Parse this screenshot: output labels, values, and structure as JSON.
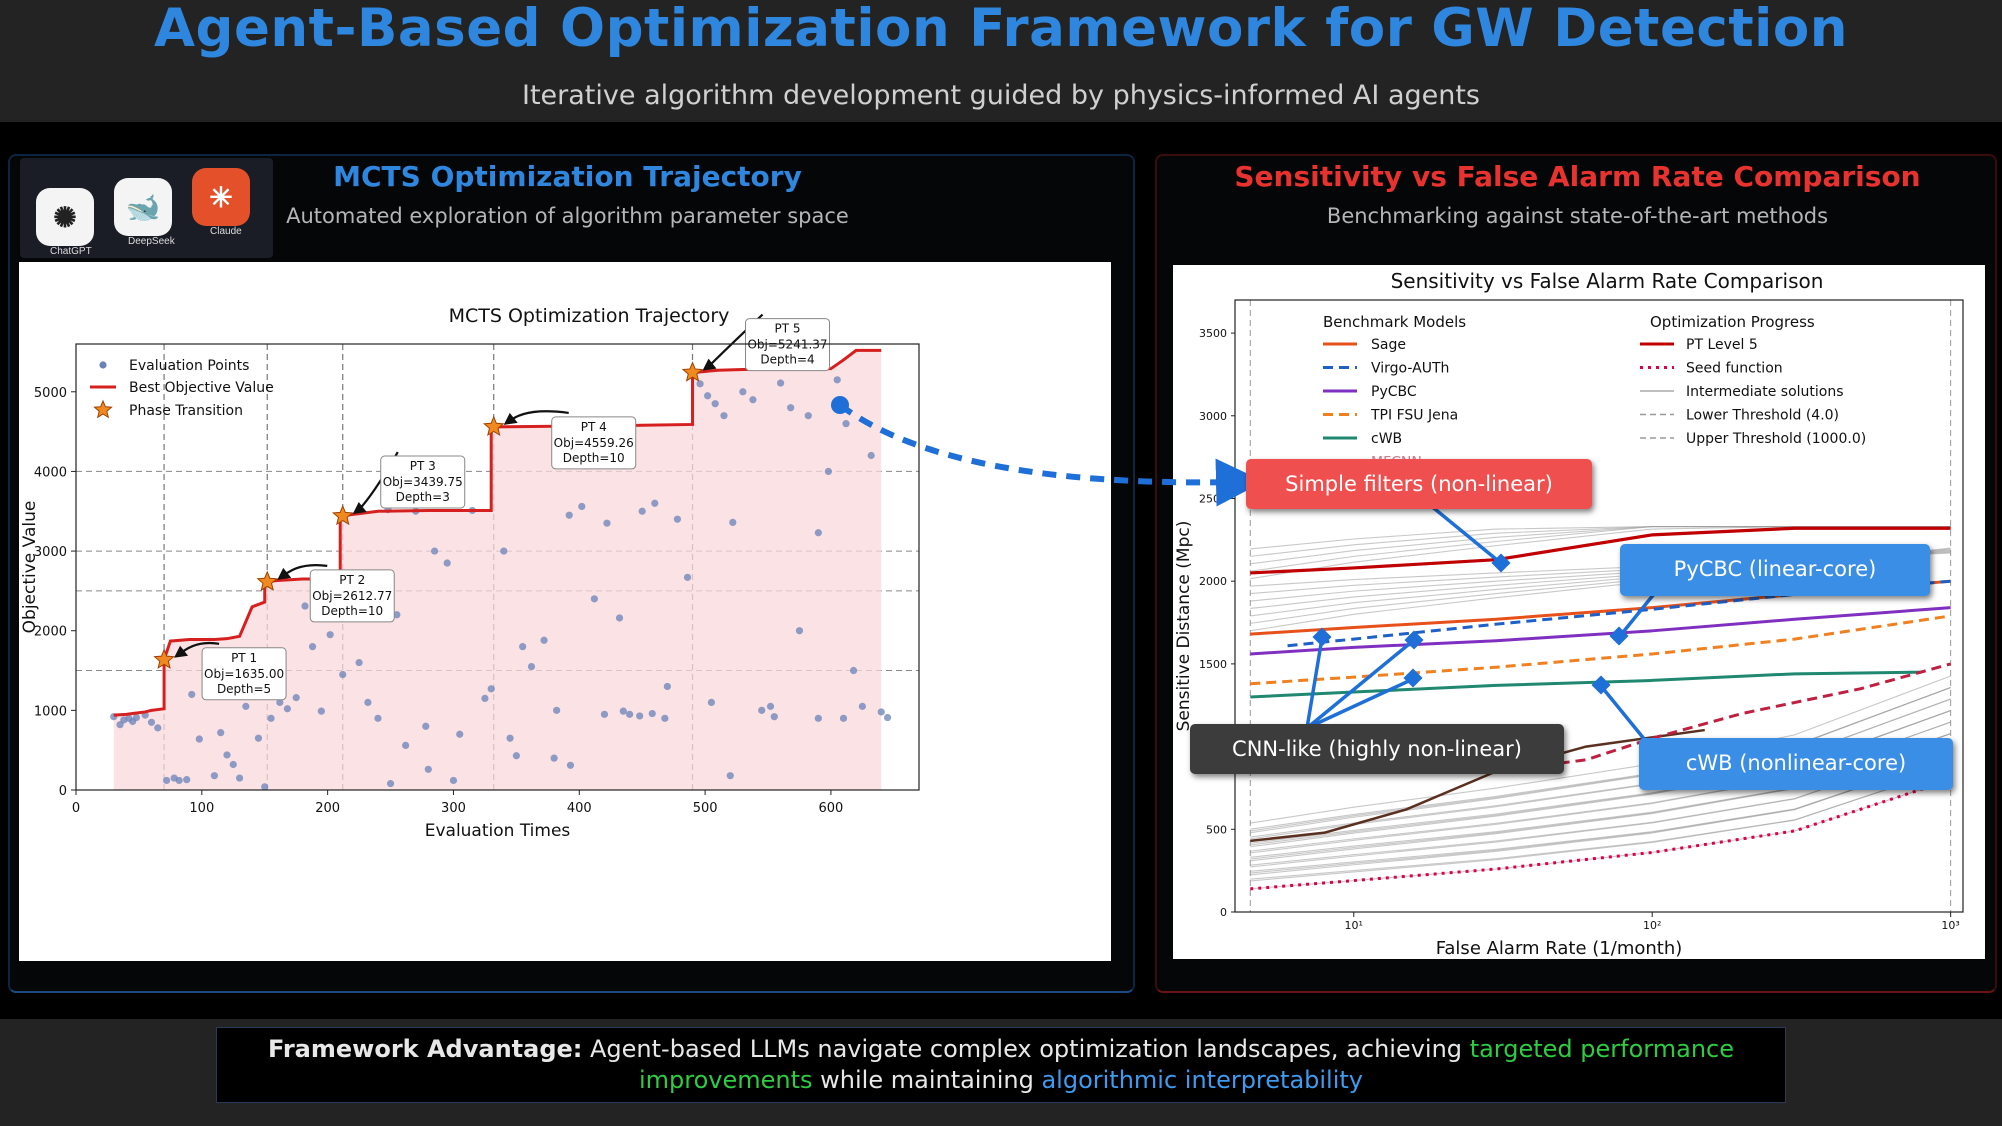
{
  "header": {
    "title": "Agent-Based Optimization Framework for GW Detection",
    "subtitle": "Iterative algorithm development guided by physics-informed AI agents"
  },
  "left_panel": {
    "title": "MCTS Optimization Trajectory",
    "subtitle": "Automated exploration of algorithm parameter space",
    "apps": [
      "ChatGPT",
      "DeepSeek",
      "Claude"
    ]
  },
  "right_panel": {
    "title": "Sensitivity vs False Alarm Rate Comparison",
    "subtitle": "Benchmarking against state-of-the-art methods"
  },
  "callouts": {
    "simple": "Simple filters (non-linear)",
    "pycbc": "PyCBC (linear-core)",
    "cnn": "CNN-like (highly non-linear)",
    "cwb": "cWB (nonlinear-core)"
  },
  "footer": {
    "label": "Framework Advantage:",
    "text1": "Agent-based LLMs navigate complex optimization landscapes, achieving",
    "hl1": "targeted performance improvements",
    "text2": "while maintaining",
    "hl2": "algorithmic interpretability"
  },
  "colors": {
    "title": "#2e86de",
    "left_title": "#2e86de",
    "right_title": "#e8322f",
    "highlight_green": "#2ecc40",
    "highlight_blue": "#3d9bf0"
  },
  "chart_data": [
    {
      "type": "scatter",
      "title": "MCTS Optimization Trajectory",
      "xlabel": "Evaluation Times",
      "ylabel": "Objective Value",
      "xlim": [
        0,
        670
      ],
      "ylim": [
        0,
        5600
      ],
      "xticks": [
        0,
        100,
        200,
        300,
        400,
        500,
        600
      ],
      "yticks": [
        0,
        1000,
        2000,
        3000,
        4000,
        5000
      ],
      "legend": [
        "Evaluation Points",
        "Best Objective Value",
        "Phase Transition"
      ],
      "best_x": [
        30,
        40,
        45,
        55,
        60,
        65,
        70,
        70,
        75,
        90,
        100,
        110,
        120,
        130,
        140,
        150,
        150,
        160,
        170,
        180,
        190,
        200,
        210,
        210,
        240,
        280,
        300,
        320,
        330,
        330,
        400,
        450,
        490,
        490,
        510,
        530,
        600,
        610,
        620,
        640
      ],
      "best_y": [
        940,
        950,
        960,
        980,
        1000,
        1010,
        1020,
        1635,
        1870,
        1890,
        1890,
        1890,
        1900,
        1930,
        2300,
        2360,
        2613,
        2630,
        2640,
        2650,
        2650,
        2650,
        2650,
        3440,
        3500,
        3510,
        3510,
        3510,
        3510,
        4559,
        4570,
        4580,
        4590,
        5241,
        5270,
        5280,
        5290,
        5400,
        5520,
        5520
      ],
      "phase_transitions": [
        {
          "label": "PT 1",
          "x": 70,
          "y": 1635,
          "obj": "Obj=1635.00",
          "depth": "Depth=5"
        },
        {
          "label": "PT 2",
          "x": 152,
          "y": 2613,
          "obj": "Obj=2612.77",
          "depth": "Depth=10"
        },
        {
          "label": "PT 3",
          "x": 212,
          "y": 3440,
          "obj": "Obj=3439.75",
          "depth": "Depth=3"
        },
        {
          "label": "PT 4",
          "x": 332,
          "y": 4559,
          "obj": "Obj=4559.26",
          "depth": "Depth=10"
        },
        {
          "label": "PT 5",
          "x": 490,
          "y": 5241,
          "obj": "Obj=5241.37",
          "depth": "Depth=4"
        }
      ],
      "eval_points": [
        [
          30,
          920
        ],
        [
          35,
          820
        ],
        [
          38,
          880
        ],
        [
          42,
          900
        ],
        [
          45,
          860
        ],
        [
          48,
          910
        ],
        [
          55,
          940
        ],
        [
          60,
          850
        ],
        [
          65,
          780
        ],
        [
          72,
          120
        ],
        [
          78,
          150
        ],
        [
          82,
          120
        ],
        [
          88,
          130
        ],
        [
          92,
          1200
        ],
        [
          98,
          640
        ],
        [
          105,
          1300
        ],
        [
          110,
          180
        ],
        [
          115,
          720
        ],
        [
          120,
          440
        ],
        [
          125,
          320
        ],
        [
          130,
          150
        ],
        [
          135,
          1050
        ],
        [
          140,
          1500
        ],
        [
          145,
          650
        ],
        [
          150,
          40
        ],
        [
          155,
          900
        ],
        [
          162,
          1100
        ],
        [
          168,
          1020
        ],
        [
          175,
          1160
        ],
        [
          182,
          2310
        ],
        [
          188,
          1800
        ],
        [
          195,
          990
        ],
        [
          202,
          1950
        ],
        [
          212,
          1450
        ],
        [
          218,
          2500
        ],
        [
          225,
          1600
        ],
        [
          232,
          1100
        ],
        [
          240,
          900
        ],
        [
          248,
          3520
        ],
        [
          255,
          2200
        ],
        [
          262,
          560
        ],
        [
          270,
          3500
        ],
        [
          278,
          800
        ],
        [
          285,
          3000
        ],
        [
          295,
          2850
        ],
        [
          305,
          700
        ],
        [
          315,
          3510
        ],
        [
          325,
          1150
        ],
        [
          330,
          1270
        ],
        [
          340,
          3000
        ],
        [
          345,
          650
        ],
        [
          355,
          1800
        ],
        [
          362,
          1550
        ],
        [
          372,
          1880
        ],
        [
          382,
          1000
        ],
        [
          392,
          3450
        ],
        [
          402,
          3560
        ],
        [
          412,
          2400
        ],
        [
          422,
          3350
        ],
        [
          432,
          2160
        ],
        [
          440,
          950
        ],
        [
          450,
          3500
        ],
        [
          460,
          3600
        ],
        [
          470,
          1300
        ],
        [
          478,
          3400
        ],
        [
          486,
          2670
        ],
        [
          496,
          5100
        ],
        [
          502,
          4950
        ],
        [
          508,
          4850
        ],
        [
          515,
          4700
        ],
        [
          522,
          3360
        ],
        [
          530,
          5000
        ],
        [
          538,
          4900
        ],
        [
          545,
          1000
        ],
        [
          552,
          1050
        ],
        [
          560,
          5110
        ],
        [
          568,
          4800
        ],
        [
          575,
          2000
        ],
        [
          582,
          4700
        ],
        [
          590,
          3230
        ],
        [
          598,
          4000
        ],
        [
          605,
          5150
        ],
        [
          612,
          4600
        ],
        [
          618,
          1500
        ],
        [
          625,
          1050
        ],
        [
          632,
          4200
        ],
        [
          640,
          980
        ],
        [
          645,
          910
        ],
        [
          420,
          950
        ],
        [
          435,
          990
        ],
        [
          448,
          930
        ],
        [
          458,
          960
        ],
        [
          468,
          900
        ],
        [
          380,
          400
        ],
        [
          393,
          310
        ],
        [
          350,
          430
        ],
        [
          300,
          120
        ],
        [
          250,
          80
        ],
        [
          280,
          260
        ],
        [
          505,
          1100
        ],
        [
          555,
          920
        ],
        [
          590,
          900
        ],
        [
          610,
          900
        ],
        [
          520,
          180
        ]
      ]
    },
    {
      "type": "line",
      "title": "Sensitivity vs False Alarm Rate Comparison",
      "xlabel": "False Alarm Rate (1/month)",
      "ylabel": "Sensitive Distance (Mpc)",
      "xscale": "log",
      "xlim": [
        4,
        1100
      ],
      "ylim": [
        0,
        3700
      ],
      "yticks": [
        0,
        500,
        1000,
        1500,
        2000,
        2500,
        3000,
        3500
      ],
      "xticks": [
        "10¹",
        "10²",
        "10³"
      ],
      "legend_benchmark_title": "Benchmark Models",
      "legend_progress_title": "Optimization Progress",
      "benchmark": [
        {
          "name": "Sage",
          "color": "#e8501a",
          "dash": "solid",
          "x": [
            4.5,
            10,
            30,
            100,
            300,
            1000
          ],
          "y": [
            1680,
            1720,
            1770,
            1840,
            1920,
            2000
          ]
        },
        {
          "name": "Virgo-AUTh",
          "color": "#1e5fc8",
          "dash": "dashed",
          "x": [
            6,
            10,
            30,
            100,
            300,
            1000
          ],
          "y": [
            1610,
            1650,
            1740,
            1830,
            1920,
            2000
          ]
        },
        {
          "name": "PyCBC",
          "color": "#8030c0",
          "dash": "solid",
          "x": [
            4.5,
            10,
            30,
            100,
            300,
            1000
          ],
          "y": [
            1560,
            1600,
            1640,
            1700,
            1770,
            1840
          ]
        },
        {
          "name": "TPI FSU Jena",
          "color": "#f08020",
          "dash": "dashed",
          "x": [
            4.5,
            10,
            30,
            100,
            300,
            1000
          ],
          "y": [
            1380,
            1420,
            1480,
            1560,
            1650,
            1790
          ]
        },
        {
          "name": "cWB",
          "color": "#208870",
          "dash": "solid",
          "x": [
            4.5,
            10,
            30,
            100,
            300,
            800
          ],
          "y": [
            1300,
            1330,
            1370,
            1400,
            1440,
            1450
          ]
        },
        {
          "name": "MFCNN",
          "color": "#c02040",
          "dash": "dashed",
          "x": [
            30,
            60,
            100,
            200,
            500,
            1000
          ],
          "y": [
            850,
            920,
            1050,
            1200,
            1350,
            1500
          ]
        }
      ],
      "progress": [
        {
          "name": "PT Level 5",
          "color": "#c00000",
          "x": [
            4.5,
            10,
            30,
            100,
            300,
            1000
          ],
          "y": [
            2050,
            2080,
            2130,
            2280,
            2320,
            2320
          ]
        },
        {
          "name": "Seed function",
          "color": "#e0004a",
          "x": [
            4.5,
            10,
            30,
            100,
            300,
            1000
          ],
          "y": [
            140,
            190,
            260,
            360,
            490,
            800
          ]
        },
        {
          "name": "Intermediate solutions",
          "color": "#aaaaaa"
        },
        {
          "name": "Lower Threshold (4.0)",
          "value": 4.0
        },
        {
          "name": "Upper Threshold (1000.0)",
          "value": 1000.0
        }
      ],
      "cnn_like": {
        "x": [
          4.5,
          8,
          15,
          30,
          60,
          150
        ],
        "y": [
          430,
          480,
          620,
          850,
          1000,
          1100
        ]
      }
    }
  ]
}
